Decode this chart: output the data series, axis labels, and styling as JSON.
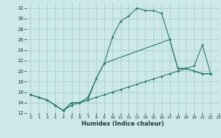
{
  "xlabel": "Humidex (Indice chaleur)",
  "bg_color": "#cce8e8",
  "grid_color": "#aacccc",
  "line_color": "#2d7a6a",
  "xlim": [
    -0.5,
    23
  ],
  "ylim": [
    12,
    33
  ],
  "xticks": [
    0,
    1,
    2,
    3,
    4,
    5,
    6,
    7,
    8,
    9,
    10,
    11,
    12,
    13,
    14,
    15,
    16,
    17,
    18,
    19,
    20,
    21,
    22,
    23
  ],
  "yticks": [
    12,
    14,
    16,
    18,
    20,
    22,
    24,
    26,
    28,
    30,
    32
  ],
  "line1_x": [
    0,
    1,
    2,
    3,
    4,
    5,
    6,
    7,
    8,
    9,
    10,
    11,
    12,
    13,
    14,
    15,
    16,
    17,
    18,
    19,
    20,
    21,
    22
  ],
  "line1_y": [
    15.5,
    15.0,
    14.5,
    13.5,
    12.5,
    14.0,
    14.0,
    15.0,
    18.5,
    21.5,
    26.5,
    29.5,
    30.5,
    32.0,
    31.5,
    31.5,
    31.0,
    26.0,
    20.5,
    20.5,
    20.0,
    19.5,
    19.5
  ],
  "line2_x": [
    0,
    1,
    2,
    3,
    4,
    5,
    6,
    7,
    8,
    9,
    10,
    11,
    12,
    13,
    14,
    15,
    16,
    17,
    18,
    19,
    20,
    21,
    22
  ],
  "line2_y": [
    15.5,
    15.0,
    14.5,
    13.5,
    12.5,
    13.5,
    14.0,
    14.5,
    15.0,
    15.5,
    16.0,
    16.5,
    17.0,
    17.5,
    18.0,
    18.5,
    19.0,
    19.5,
    20.0,
    20.5,
    21.0,
    25.0,
    19.5
  ],
  "line3_x": [
    0,
    1,
    2,
    3,
    4,
    5,
    6,
    7,
    8,
    9,
    17,
    18,
    19,
    20,
    21,
    22
  ],
  "line3_y": [
    15.5,
    15.0,
    14.5,
    13.5,
    12.5,
    14.0,
    14.0,
    14.5,
    18.5,
    21.5,
    26.0,
    20.5,
    20.5,
    20.0,
    19.5,
    19.5
  ]
}
